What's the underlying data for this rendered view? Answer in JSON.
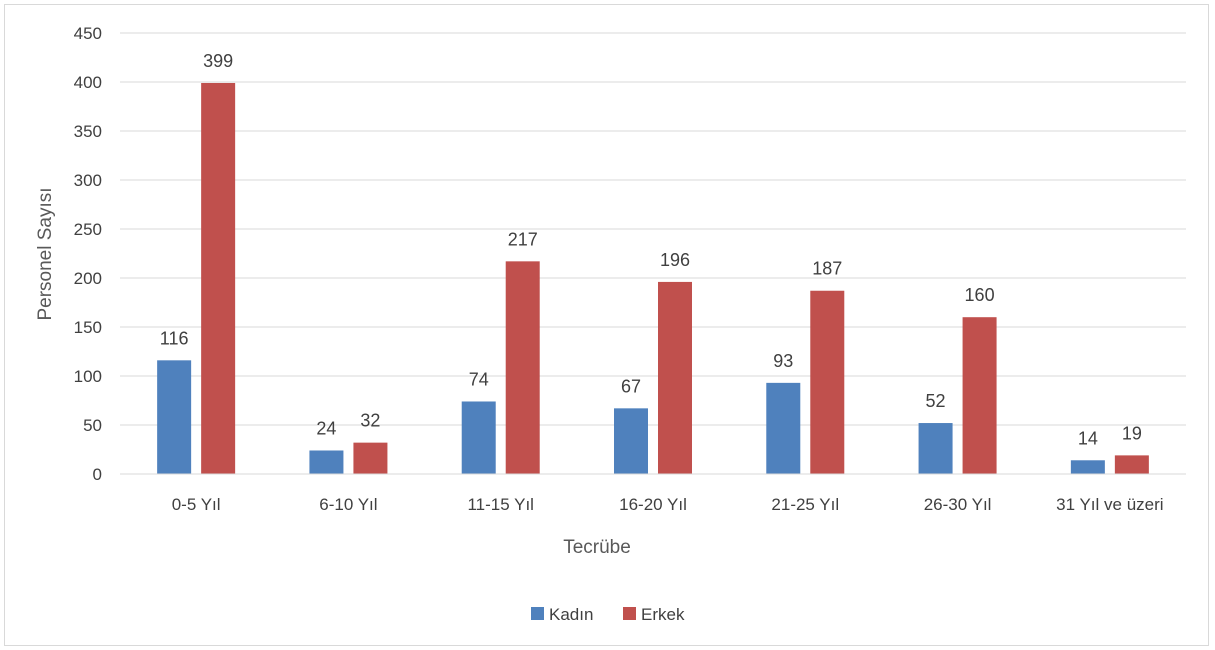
{
  "chart_data": {
    "type": "bar",
    "categories": [
      "0-5 Yıl",
      "6-10 Yıl",
      "11-15 Yıl",
      "16-20 Yıl",
      "21-25 Yıl",
      "26-30 Yıl",
      "31 Yıl ve üzeri"
    ],
    "series": [
      {
        "name": "Kadın",
        "color": "#4f81bd",
        "values": [
          116,
          24,
          74,
          67,
          93,
          52,
          14
        ]
      },
      {
        "name": "Erkek",
        "color": "#c0504d",
        "values": [
          399,
          32,
          217,
          196,
          187,
          160,
          19
        ]
      }
    ],
    "title": "",
    "xlabel": "Tecrübe",
    "ylabel": "Personel Sayısı",
    "ylim": [
      0,
      450
    ],
    "yticks": [
      0,
      50,
      100,
      150,
      200,
      250,
      300,
      350,
      400,
      450
    ],
    "grid": true,
    "legend_position": "bottom",
    "gridline_color": "#d9d9d9"
  }
}
